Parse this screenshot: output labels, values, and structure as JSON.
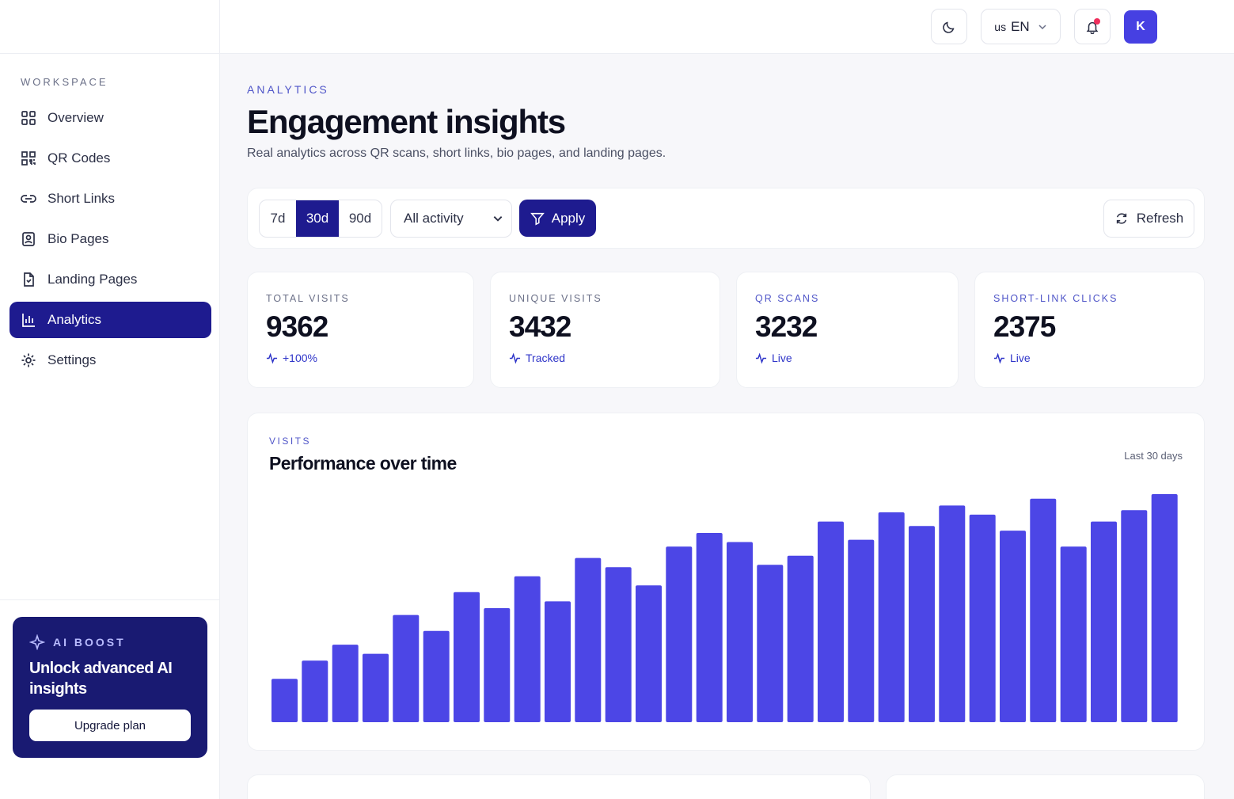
{
  "sidebar": {
    "section_label": "WORKSPACE",
    "items": [
      {
        "label": "Overview",
        "icon": "grid-icon"
      },
      {
        "label": "QR Codes",
        "icon": "qr-icon"
      },
      {
        "label": "Short Links",
        "icon": "link-icon"
      },
      {
        "label": "Bio Pages",
        "icon": "profile-icon"
      },
      {
        "label": "Landing Pages",
        "icon": "document-icon"
      },
      {
        "label": "Analytics",
        "icon": "bar-chart-icon",
        "active": true
      },
      {
        "label": "Settings",
        "icon": "gear-icon"
      }
    ],
    "boost": {
      "tag": "AI BOOST",
      "headline": "Unlock advanced AI insights",
      "button": "Upgrade plan"
    }
  },
  "topbar": {
    "language_flag": "us",
    "language_code": "EN",
    "avatar_initial": "K",
    "notification_unread": true
  },
  "header": {
    "eyebrow": "ANALYTICS",
    "title": "Engagement insights",
    "subtitle": "Real analytics across QR scans, short links, bio pages, and landing pages."
  },
  "filters": {
    "ranges": [
      "7d",
      "30d",
      "90d"
    ],
    "selected_range": "30d",
    "activity_select": "All activity",
    "apply_label": "Apply",
    "refresh_label": "Refresh"
  },
  "stats": [
    {
      "label": "TOTAL VISITS",
      "value": "9362",
      "trend": "+100%"
    },
    {
      "label": "UNIQUE VISITS",
      "value": "3432",
      "trend": "Tracked"
    },
    {
      "label": "QR SCANS",
      "value": "3232",
      "trend": "Live"
    },
    {
      "label": "SHORT-LINK CLICKS",
      "value": "2375",
      "trend": "Live"
    }
  ],
  "chart": {
    "eyebrow": "VISITS",
    "title": "Performance over time",
    "range_label": "Last 30 days"
  },
  "chart_data": {
    "type": "bar",
    "title": "Performance over time",
    "xlabel": "",
    "ylabel": "",
    "grid": false,
    "legend": "none",
    "bar_color": "#4c46e6",
    "values": [
      19,
      27,
      34,
      30,
      47,
      40,
      57,
      50,
      64,
      53,
      72,
      68,
      60,
      77,
      83,
      79,
      69,
      73,
      88,
      80,
      92,
      86,
      95,
      91,
      84,
      98,
      77,
      88,
      93,
      100
    ]
  },
  "colors": {
    "accent": "#1e1b8f",
    "bar": "#4c46e6",
    "avatar": "#4640e2",
    "badge": "#ef2f5c"
  }
}
